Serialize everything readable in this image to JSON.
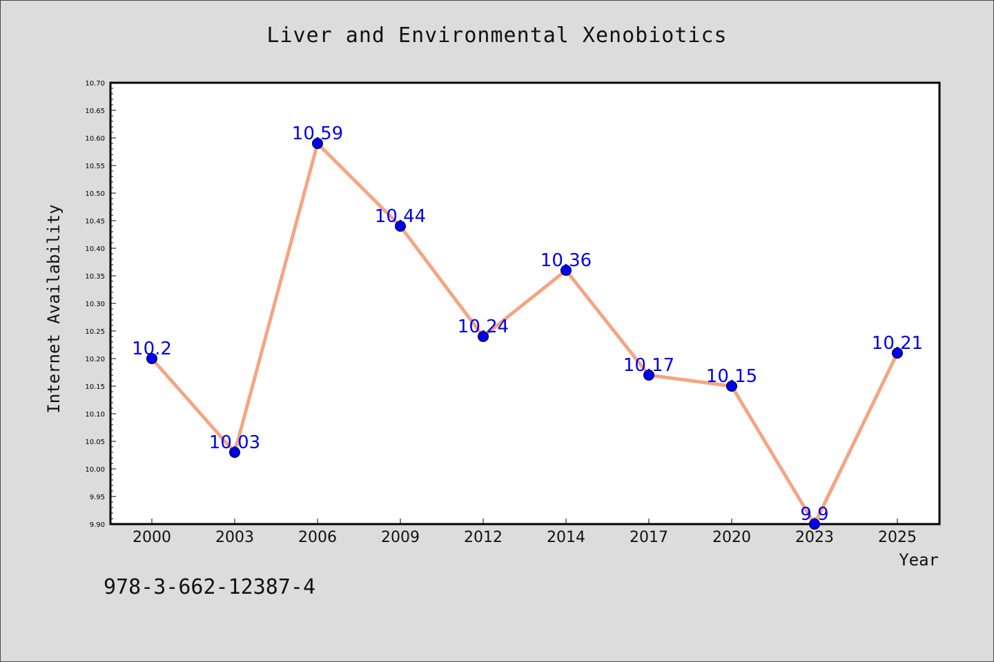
{
  "chart_data": {
    "type": "line",
    "title": "Liver and Environmental Xenobiotics",
    "xlabel": "Year",
    "ylabel": "Internet Availability",
    "categories": [
      "2000",
      "2003",
      "2006",
      "2009",
      "2012",
      "2014",
      "2017",
      "2020",
      "2023",
      "2025"
    ],
    "series": [
      {
        "values": [
          10.2,
          10.03,
          10.59,
          10.44,
          10.24,
          10.36,
          10.17,
          10.15,
          9.9,
          10.21
        ],
        "data_labels": [
          "10.2",
          "10.03",
          "10.59",
          "10.44",
          "10.24",
          "10.36",
          "10.17",
          "10.15",
          "9.9",
          "10.21"
        ]
      }
    ],
    "ylim": [
      9.9,
      10.7
    ],
    "yticks": [
      "9.90",
      "9.95",
      "10.00",
      "10.05",
      "10.10",
      "10.15",
      "10.20",
      "10.25",
      "10.30",
      "10.35",
      "10.40",
      "10.45",
      "10.50",
      "10.55",
      "10.60",
      "10.65",
      "10.70"
    ],
    "grid": false,
    "colors": {
      "line": "#f4a582",
      "marker": "#0000ee",
      "data_label": "#0000ee"
    }
  },
  "footer": {
    "isbn": "978-3-662-12387-4"
  }
}
